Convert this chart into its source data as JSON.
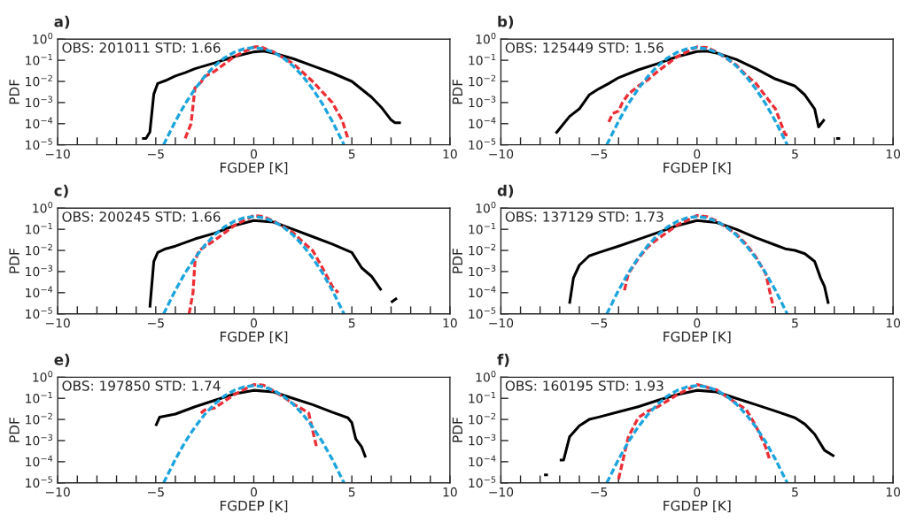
{
  "chart_data": [
    {
      "type": "line",
      "title": "a)",
      "xlabel": "FGDEP [K]",
      "ylabel": "PDF",
      "log": "y",
      "grid": false,
      "xlim": [
        -10,
        10
      ],
      "ylim": [
        1e-05,
        1
      ],
      "xticks": [
        {
          "value": -10,
          "label": "−10"
        },
        {
          "value": -9,
          "label": null
        },
        {
          "value": -8,
          "label": null
        },
        {
          "value": -7,
          "label": null
        },
        {
          "value": -6,
          "label": null
        },
        {
          "value": -5,
          "label": "−5"
        },
        {
          "value": -4,
          "label": null
        },
        {
          "value": -3,
          "label": null
        },
        {
          "value": -2,
          "label": null
        },
        {
          "value": -1,
          "label": null
        },
        0,
        {
          "value": 1,
          "label": null
        },
        {
          "value": 2,
          "label": null
        },
        {
          "value": 3,
          "label": null
        },
        {
          "value": 4,
          "label": null
        },
        5,
        {
          "value": 6,
          "label": null
        },
        {
          "value": 7,
          "label": null
        },
        {
          "value": 8,
          "label": null
        },
        {
          "value": 9,
          "label": null
        },
        10
      ],
      "yticks": [
        {
          "value": 1e-05,
          "label": "10$^{−5}$"
        },
        {
          "value": 0.0001,
          "label": "10$^{−4}$"
        },
        {
          "value": 0.001,
          "label": "10$^{−3}$"
        },
        {
          "value": 0.01,
          "label": "10$^{−2}$"
        },
        {
          "value": 0.1,
          "label": "10$^{−1}$"
        },
        {
          "value": 1,
          "label": "10$^{0}$"
        }
      ],
      "annotations": [
        "OBS: 201011 STD: 1.66"
      ],
      "series": [
        {
          "color": "#000000",
          "line_style": "solid",
          "x": [
            -5.7,
            -5.5,
            -5.3,
            -5.1,
            -4.9,
            -4.5,
            -4,
            -3.5,
            -3,
            -2,
            -1,
            0,
            0.5,
            1,
            2,
            3,
            4,
            5,
            6,
            6.5,
            7,
            7.2,
            7.5
          ],
          "values": [
            2e-05,
            2e-05,
            4e-05,
            0.0025,
            0.008,
            0.011,
            0.018,
            0.026,
            0.04,
            0.075,
            0.15,
            0.25,
            0.27,
            0.22,
            0.12,
            0.055,
            0.025,
            0.01,
            0.0018,
            0.0006,
            0.00015,
            0.00011,
            0.00011
          ]
        },
        {
          "color": "#ec2f36",
          "line_style": "dashed",
          "x": [
            -3.5,
            -3.2,
            -3,
            -2.7,
            -2.5,
            -2,
            -1,
            0,
            0.3,
            1,
            2,
            3,
            4,
            4.5,
            4.8
          ],
          "values": [
            2e-05,
            0.0001,
            0.005,
            0.009,
            0.017,
            0.03,
            0.15,
            0.42,
            0.45,
            0.25,
            0.07,
            0.01,
            0.001,
            0.00015,
            2e-05
          ]
        },
        {
          "color": "#1ca4dc",
          "line_style": "dashed",
          "x": [
            -4.6,
            -4,
            -3.5,
            -3,
            -2.5,
            -2,
            -1.5,
            -1,
            -0.5,
            0,
            0.5,
            1,
            1.5,
            2,
            2.5,
            3,
            3.5,
            4,
            4.6
          ],
          "values": [
            1e-05,
            0.00013,
            0.00087,
            0.0044,
            0.0175,
            0.054,
            0.13,
            0.24,
            0.35,
            0.4,
            0.35,
            0.24,
            0.13,
            0.054,
            0.0175,
            0.0044,
            0.00087,
            0.00013,
            1e-05
          ]
        }
      ]
    },
    {
      "type": "line",
      "title": "b)",
      "xlabel": "FGDEP [K]",
      "ylabel": "PDF",
      "log": "y",
      "grid": false,
      "xlim": [
        -10,
        10
      ],
      "ylim": [
        1e-05,
        1
      ],
      "xticks": [
        {
          "value": -10,
          "label": "−10"
        },
        {
          "value": -9,
          "label": null
        },
        {
          "value": -8,
          "label": null
        },
        {
          "value": -7,
          "label": null
        },
        {
          "value": -6,
          "label": null
        },
        {
          "value": -5,
          "label": "−5"
        },
        {
          "value": -4,
          "label": null
        },
        {
          "value": -3,
          "label": null
        },
        {
          "value": -2,
          "label": null
        },
        {
          "value": -1,
          "label": null
        },
        0,
        {
          "value": 1,
          "label": null
        },
        {
          "value": 2,
          "label": null
        },
        {
          "value": 3,
          "label": null
        },
        {
          "value": 4,
          "label": null
        },
        5,
        {
          "value": 6,
          "label": null
        },
        {
          "value": 7,
          "label": null
        },
        {
          "value": 8,
          "label": null
        },
        {
          "value": 9,
          "label": null
        },
        10
      ],
      "yticks": [
        {
          "value": 1e-05,
          "label": "10$^{−5}$"
        },
        {
          "value": 0.0001,
          "label": "10$^{−4}$"
        },
        {
          "value": 0.001,
          "label": "10$^{−3}$"
        },
        {
          "value": 0.01,
          "label": "10$^{−2}$"
        },
        {
          "value": 0.1,
          "label": "10$^{−1}$"
        },
        {
          "value": 1,
          "label": "10$^{0}$"
        }
      ],
      "annotations": [
        "OBS: 125449 STD: 1.56"
      ],
      "series": [
        {
          "color": "#000000",
          "line_style": "solid",
          "x": [
            -7.2,
            -6.5,
            -6,
            -5.5,
            -5,
            -4.5,
            -4,
            -3,
            -2,
            -1,
            0,
            0.5,
            1,
            2,
            3,
            4,
            5,
            5.5,
            6,
            6.2,
            6.5,
            6.8,
            7.1,
            7.3
          ],
          "values": [
            3.5e-05,
            0.00022,
            0.0005,
            0.0023,
            0.0045,
            0.008,
            0.015,
            0.035,
            0.07,
            0.15,
            0.26,
            0.27,
            0.22,
            0.11,
            0.04,
            0.013,
            0.006,
            0.0023,
            0.0005,
            7e-05,
            0.00016,
            null,
            2e-05,
            2e-05
          ]
        },
        {
          "color": "#ec2f36",
          "line_style": "dashed",
          "x": [
            -4.5,
            -4.3,
            -4,
            -3.8,
            -3.5,
            -3,
            -2.5,
            -2,
            -1,
            0,
            0.5,
            1,
            2,
            2.5,
            3,
            3.5,
            4,
            4.5,
            4.7
          ],
          "values": [
            0.00012,
            0.0003,
            0.0004,
            0.001,
            0.0025,
            0.006,
            0.012,
            0.03,
            0.15,
            0.43,
            0.4,
            0.25,
            0.06,
            0.02,
            0.008,
            0.002,
            0.0005,
            3e-05,
            3e-05
          ]
        },
        {
          "color": "#1ca4dc",
          "line_style": "dashed",
          "x": [
            -4.6,
            -4,
            -3.5,
            -3,
            -2.5,
            -2,
            -1.5,
            -1,
            -0.5,
            0,
            0.5,
            1,
            1.5,
            2,
            2.5,
            3,
            3.5,
            4,
            4.6
          ],
          "values": [
            1e-05,
            0.00013,
            0.00087,
            0.0044,
            0.0175,
            0.054,
            0.13,
            0.24,
            0.35,
            0.4,
            0.35,
            0.24,
            0.13,
            0.054,
            0.0175,
            0.0044,
            0.00087,
            0.00013,
            1e-05
          ]
        }
      ]
    },
    {
      "type": "line",
      "title": "c)",
      "xlabel": "FGDEP [K]",
      "ylabel": "PDF",
      "log": "y",
      "grid": false,
      "xlim": [
        -10,
        10
      ],
      "ylim": [
        1e-05,
        1
      ],
      "xticks": [
        {
          "value": -10,
          "label": "−10"
        },
        {
          "value": -9,
          "label": null
        },
        {
          "value": -8,
          "label": null
        },
        {
          "value": -7,
          "label": null
        },
        {
          "value": -6,
          "label": null
        },
        {
          "value": -5,
          "label": "−5"
        },
        {
          "value": -4,
          "label": null
        },
        {
          "value": -3,
          "label": null
        },
        {
          "value": -2,
          "label": null
        },
        {
          "value": -1,
          "label": null
        },
        0,
        {
          "value": 1,
          "label": null
        },
        {
          "value": 2,
          "label": null
        },
        {
          "value": 3,
          "label": null
        },
        {
          "value": 4,
          "label": null
        },
        5,
        {
          "value": 6,
          "label": null
        },
        {
          "value": 7,
          "label": null
        },
        {
          "value": 8,
          "label": null
        },
        {
          "value": 9,
          "label": null
        },
        10
      ],
      "yticks": [
        {
          "value": 1e-05,
          "label": "10$^{−5}$"
        },
        {
          "value": 0.0001,
          "label": "10$^{−4}$"
        },
        {
          "value": 0.001,
          "label": "10$^{−3}$"
        },
        {
          "value": 0.01,
          "label": "10$^{−2}$"
        },
        {
          "value": 0.1,
          "label": "10$^{−1}$"
        },
        {
          "value": 1,
          "label": "10$^{0}$"
        }
      ],
      "annotations": [
        "OBS: 200245 STD: 1.66"
      ],
      "series": [
        {
          "color": "#000000",
          "line_style": "solid",
          "x": [
            -5.3,
            -5.1,
            -4.9,
            -4.5,
            -4,
            -3,
            -2,
            -1,
            0,
            1,
            2,
            3,
            4,
            5,
            5.5,
            6,
            6.5,
            6.8,
            7.0,
            7.3
          ],
          "values": [
            2e-05,
            0.003,
            0.008,
            0.012,
            0.016,
            0.035,
            0.065,
            0.15,
            0.26,
            0.22,
            0.1,
            0.045,
            0.02,
            0.008,
            0.0015,
            0.0006,
            0.00013,
            null,
            3.5e-05,
            5.5e-05
          ]
        },
        {
          "color": "#ec2f36",
          "line_style": "dashed",
          "x": [
            -3.3,
            -3.1,
            -3,
            -2.8,
            -2.5,
            -2,
            -1,
            0,
            0.5,
            1,
            2,
            2.5,
            3,
            3.5,
            4,
            4.3
          ],
          "values": [
            1e-05,
            0.0001,
            0.003,
            0.01,
            0.015,
            0.03,
            0.15,
            0.45,
            0.4,
            0.25,
            0.07,
            0.025,
            0.01,
            0.0015,
            0.0002,
            0.0001
          ]
        },
        {
          "color": "#1ca4dc",
          "line_style": "dashed",
          "x": [
            -4.6,
            -4,
            -3.5,
            -3,
            -2.5,
            -2,
            -1.5,
            -1,
            -0.5,
            0,
            0.5,
            1,
            1.5,
            2,
            2.5,
            3,
            3.5,
            4,
            4.6
          ],
          "values": [
            1e-05,
            0.00013,
            0.00087,
            0.0044,
            0.0175,
            0.054,
            0.13,
            0.24,
            0.35,
            0.4,
            0.35,
            0.24,
            0.13,
            0.054,
            0.0175,
            0.0044,
            0.00087,
            0.00013,
            1e-05
          ]
        }
      ]
    },
    {
      "type": "line",
      "title": "d)",
      "xlabel": "FGDEP [K]",
      "ylabel": "PDF",
      "log": "y",
      "grid": false,
      "xlim": [
        -10,
        10
      ],
      "ylim": [
        1e-05,
        1
      ],
      "xticks": [
        {
          "value": -10,
          "label": "−10"
        },
        {
          "value": -9,
          "label": null
        },
        {
          "value": -8,
          "label": null
        },
        {
          "value": -7,
          "label": null
        },
        {
          "value": -6,
          "label": null
        },
        {
          "value": -5,
          "label": "−5"
        },
        {
          "value": -4,
          "label": null
        },
        {
          "value": -3,
          "label": null
        },
        {
          "value": -2,
          "label": null
        },
        {
          "value": -1,
          "label": null
        },
        0,
        {
          "value": 1,
          "label": null
        },
        {
          "value": 2,
          "label": null
        },
        {
          "value": 3,
          "label": null
        },
        {
          "value": 4,
          "label": null
        },
        5,
        {
          "value": 6,
          "label": null
        },
        {
          "value": 7,
          "label": null
        },
        {
          "value": 8,
          "label": null
        },
        {
          "value": 9,
          "label": null
        },
        10
      ],
      "yticks": [
        {
          "value": 1e-05,
          "label": "10$^{−5}$"
        },
        {
          "value": 0.0001,
          "label": "10$^{−4}$"
        },
        {
          "value": 0.001,
          "label": "10$^{−3}$"
        },
        {
          "value": 0.01,
          "label": "10$^{−2}$"
        },
        {
          "value": 0.1,
          "label": "10$^{−1}$"
        },
        {
          "value": 1,
          "label": "10$^{0}$"
        }
      ],
      "annotations": [
        "OBS: 137129 STD: 1.73"
      ],
      "series": [
        {
          "color": "#000000",
          "line_style": "solid",
          "x": [
            -6.5,
            -6.3,
            -6,
            -5.5,
            -5,
            -4,
            -3,
            -2,
            -1,
            0,
            1,
            2,
            3,
            4,
            4.5,
            5,
            5.5,
            6,
            6.3,
            6.5,
            6.7
          ],
          "values": [
            3e-05,
            0.0005,
            0.002,
            0.0055,
            0.008,
            0.016,
            0.033,
            0.07,
            0.15,
            0.26,
            0.21,
            0.1,
            0.04,
            0.018,
            0.012,
            0.01,
            0.007,
            0.003,
            0.0005,
            0.0002,
            3e-05
          ]
        },
        {
          "color": "#ec2f36",
          "line_style": "dashed",
          "x": [
            -3.7,
            -3.5,
            -3,
            -2.5,
            -2,
            -1,
            0,
            0.5,
            1,
            2,
            2.5,
            3,
            3.5,
            3.9
          ],
          "values": [
            0.00013,
            0.0008,
            0.004,
            0.015,
            0.035,
            0.16,
            0.45,
            0.4,
            0.25,
            0.06,
            0.02,
            0.005,
            0.0008,
            2e-05
          ]
        },
        {
          "color": "#1ca4dc",
          "line_style": "dashed",
          "x": [
            -4.6,
            -4,
            -3.5,
            -3,
            -2.5,
            -2,
            -1.5,
            -1,
            -0.5,
            0,
            0.5,
            1,
            1.5,
            2,
            2.5,
            3,
            3.5,
            4,
            4.6
          ],
          "values": [
            1e-05,
            0.00013,
            0.00087,
            0.0044,
            0.0175,
            0.054,
            0.13,
            0.24,
            0.35,
            0.4,
            0.35,
            0.24,
            0.13,
            0.054,
            0.0175,
            0.0044,
            0.00087,
            0.00013,
            1e-05
          ]
        }
      ]
    },
    {
      "type": "line",
      "title": "e)",
      "xlabel": "FGDEP [K]",
      "ylabel": "PDF",
      "log": "y",
      "grid": false,
      "xlim": [
        -10,
        10
      ],
      "ylim": [
        1e-05,
        1
      ],
      "xticks": [
        {
          "value": -10,
          "label": "−10"
        },
        {
          "value": -9,
          "label": null
        },
        {
          "value": -8,
          "label": null
        },
        {
          "value": -7,
          "label": null
        },
        {
          "value": -6,
          "label": null
        },
        {
          "value": -5,
          "label": "−5"
        },
        {
          "value": -4,
          "label": null
        },
        {
          "value": -3,
          "label": null
        },
        {
          "value": -2,
          "label": null
        },
        {
          "value": -1,
          "label": null
        },
        0,
        {
          "value": 1,
          "label": null
        },
        {
          "value": 2,
          "label": null
        },
        {
          "value": 3,
          "label": null
        },
        {
          "value": 4,
          "label": null
        },
        5,
        {
          "value": 6,
          "label": null
        },
        {
          "value": 7,
          "label": null
        },
        {
          "value": 8,
          "label": null
        },
        {
          "value": 9,
          "label": null
        },
        10
      ],
      "yticks": [
        {
          "value": 1e-05,
          "label": "10$^{−5}$"
        },
        {
          "value": 0.0001,
          "label": "10$^{−4}$"
        },
        {
          "value": 0.001,
          "label": "10$^{−3}$"
        },
        {
          "value": 0.01,
          "label": "10$^{−2}$"
        },
        {
          "value": 0.1,
          "label": "10$^{−1}$"
        },
        {
          "value": 1,
          "label": "10$^{0}$"
        }
      ],
      "annotations": [
        "OBS: 197850 STD: 1.74"
      ],
      "series": [
        {
          "color": "#000000",
          "line_style": "solid",
          "x": [
            -5,
            -4.8,
            -4,
            -3,
            -2,
            -1,
            0,
            1,
            2,
            3,
            4,
            4.8,
            5,
            5.2,
            5.5,
            5.7
          ],
          "values": [
            0.005,
            0.013,
            0.018,
            0.04,
            0.08,
            0.16,
            0.24,
            0.2,
            0.1,
            0.05,
            0.022,
            0.012,
            0.007,
            0.0012,
            0.0005,
            0.00016
          ]
        },
        {
          "color": "#ec2f36",
          "line_style": "dashed",
          "x": [
            -2.7,
            -2.5,
            -2,
            -1,
            0,
            0.5,
            1,
            1.5,
            2,
            2.5,
            2.8,
            3,
            3.2
          ],
          "values": [
            0.02,
            0.028,
            0.035,
            0.15,
            0.45,
            0.42,
            0.22,
            0.12,
            0.055,
            0.03,
            0.02,
            0.003,
            0.0005
          ]
        },
        {
          "color": "#1ca4dc",
          "line_style": "dashed",
          "x": [
            -4.6,
            -4,
            -3.5,
            -3,
            -2.5,
            -2,
            -1.5,
            -1,
            -0.5,
            0,
            0.5,
            1,
            1.5,
            2,
            2.5,
            3,
            3.5,
            4,
            4.6
          ],
          "values": [
            1e-05,
            0.00013,
            0.00087,
            0.0044,
            0.0175,
            0.054,
            0.13,
            0.24,
            0.35,
            0.4,
            0.35,
            0.24,
            0.13,
            0.054,
            0.0175,
            0.0044,
            0.00087,
            0.00013,
            1e-05
          ]
        }
      ]
    },
    {
      "type": "line",
      "title": "f)",
      "xlabel": "FGDEP [K]",
      "ylabel": "PDF",
      "log": "y",
      "grid": false,
      "xlim": [
        -10,
        10
      ],
      "ylim": [
        1e-05,
        1
      ],
      "xticks": [
        {
          "value": -10,
          "label": "−10"
        },
        {
          "value": -9,
          "label": null
        },
        {
          "value": -8,
          "label": null
        },
        {
          "value": -7,
          "label": null
        },
        {
          "value": -6,
          "label": null
        },
        {
          "value": -5,
          "label": "−5"
        },
        {
          "value": -4,
          "label": null
        },
        {
          "value": -3,
          "label": null
        },
        {
          "value": -2,
          "label": null
        },
        {
          "value": -1,
          "label": null
        },
        0,
        {
          "value": 1,
          "label": null
        },
        {
          "value": 2,
          "label": null
        },
        {
          "value": 3,
          "label": null
        },
        {
          "value": 4,
          "label": null
        },
        5,
        {
          "value": 6,
          "label": null
        },
        {
          "value": 7,
          "label": null
        },
        {
          "value": 8,
          "label": null
        },
        {
          "value": 9,
          "label": null
        },
        10
      ],
      "yticks": [
        {
          "value": 1e-05,
          "label": "10$^{−5}$"
        },
        {
          "value": 0.0001,
          "label": "10$^{−4}$"
        },
        {
          "value": 0.001,
          "label": "10$^{−3}$"
        },
        {
          "value": 0.01,
          "label": "10$^{−2}$"
        },
        {
          "value": 0.1,
          "label": "10$^{−1}$"
        },
        {
          "value": 1,
          "label": "10$^{0}$"
        }
      ],
      "annotations": [
        "OBS: 160195 STD: 1.93"
      ],
      "series": [
        {
          "color": "#000000",
          "line_style": "solid",
          "x": [
            -7.8,
            -7.6,
            -7.3,
            -7,
            -6.8,
            -6.5,
            -6,
            -5.5,
            -5,
            -4,
            -3,
            -2,
            -1,
            0,
            1,
            2,
            3,
            4,
            5,
            5.5,
            6,
            6.5,
            7
          ],
          "values": [
            2.4e-05,
            2.4e-05,
            null,
            0.00012,
            0.00012,
            0.0015,
            0.005,
            0.01,
            0.013,
            0.023,
            0.04,
            0.08,
            0.15,
            0.24,
            0.2,
            0.1,
            0.05,
            0.025,
            0.012,
            0.006,
            0.002,
            0.00035,
            0.00018
          ]
        },
        {
          "color": "#ec2f36",
          "line_style": "dashed",
          "x": [
            -4,
            -3.5,
            -3,
            -2.5,
            -2,
            -1,
            0,
            1,
            2,
            2.5,
            3,
            3.5,
            3.7
          ],
          "values": [
            1.5e-05,
            0.0015,
            0.012,
            0.025,
            0.04,
            0.15,
            0.45,
            0.25,
            0.06,
            0.03,
            0.005,
            0.0005,
            0.00013
          ]
        },
        {
          "color": "#1ca4dc",
          "line_style": "dashed",
          "x": [
            -4.6,
            -4,
            -3.5,
            -3,
            -2.5,
            -2,
            -1.5,
            -1,
            -0.5,
            0,
            0.5,
            1,
            1.5,
            2,
            2.5,
            3,
            3.5,
            4,
            4.6
          ],
          "values": [
            1e-05,
            0.00013,
            0.00087,
            0.0044,
            0.0175,
            0.054,
            0.13,
            0.24,
            0.35,
            0.4,
            0.35,
            0.24,
            0.13,
            0.054,
            0.0175,
            0.0044,
            0.00087,
            0.00013,
            1e-05
          ]
        }
      ]
    }
  ]
}
